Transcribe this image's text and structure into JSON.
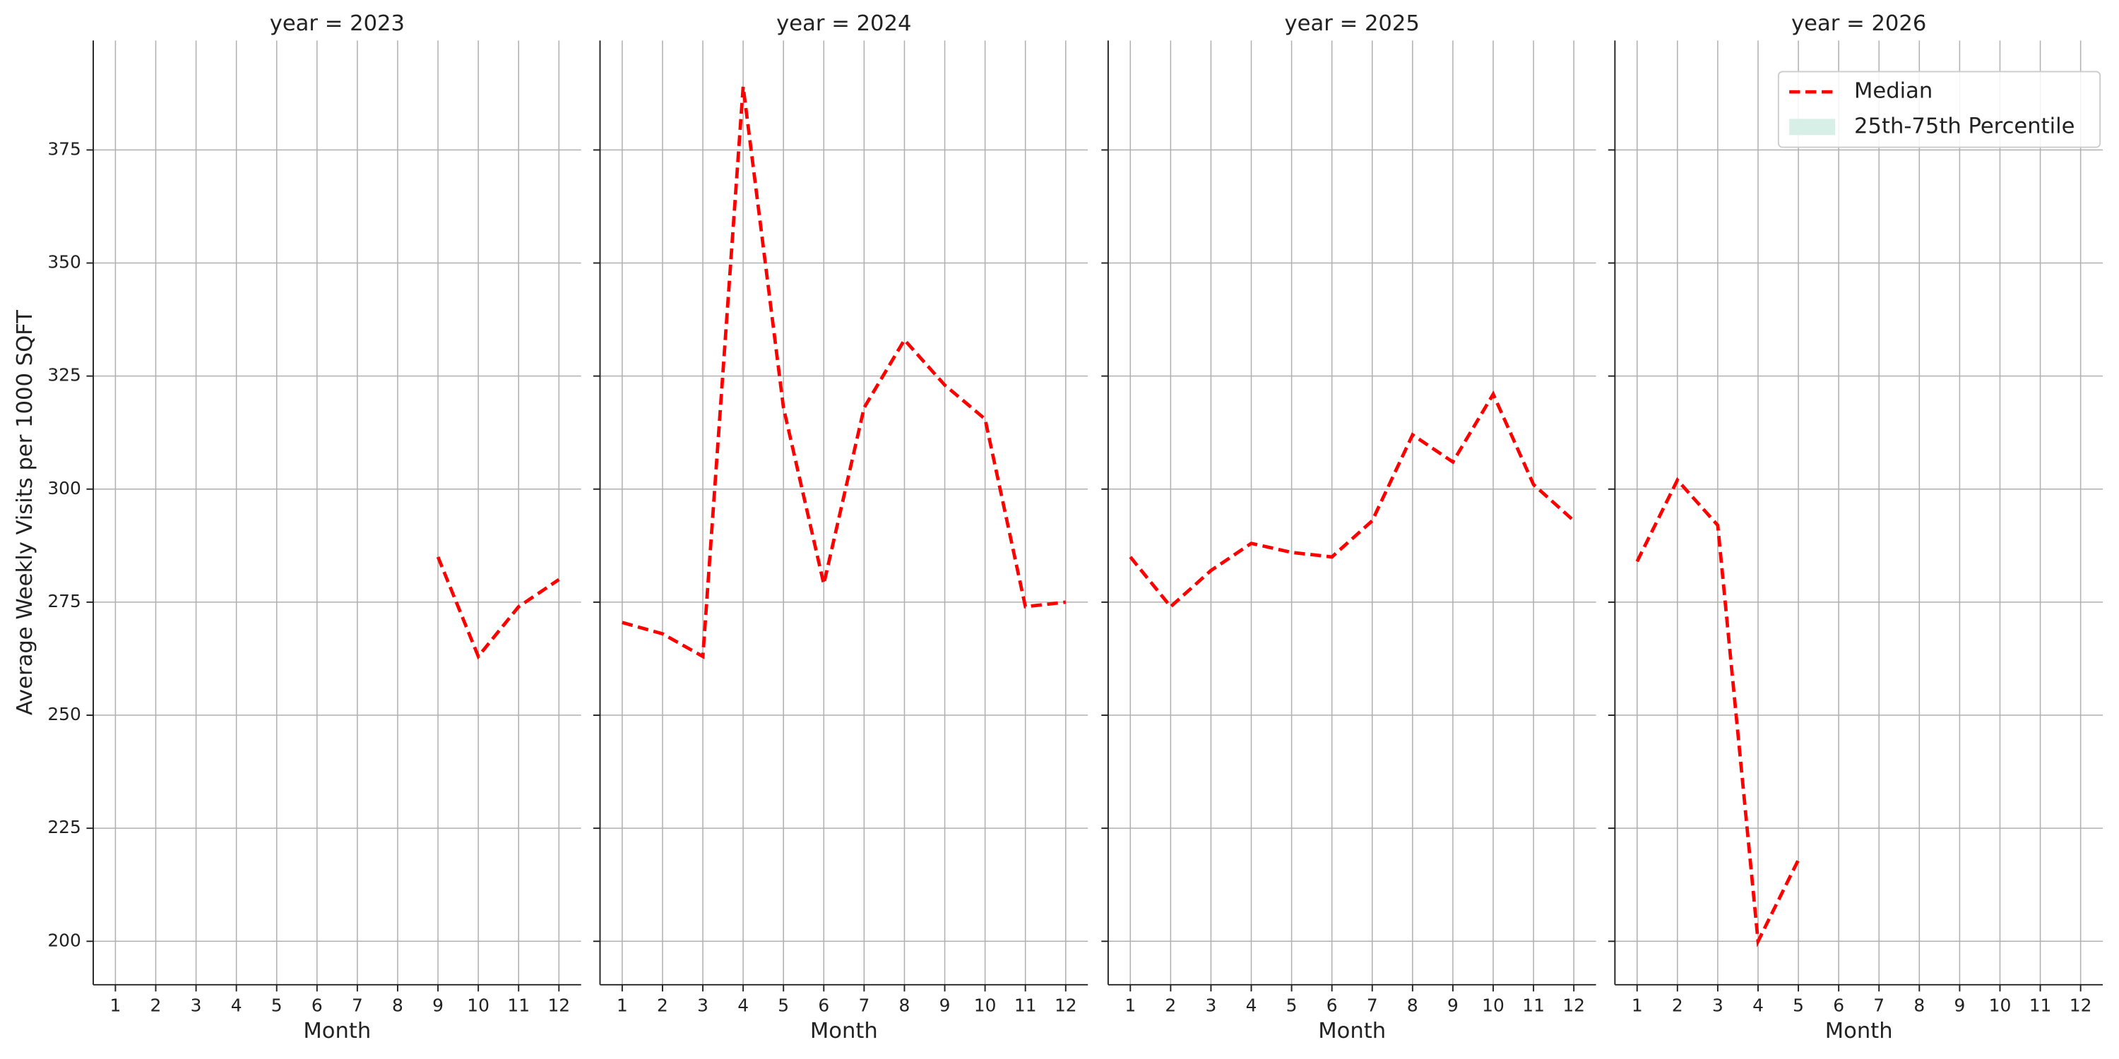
{
  "chart_data": [
    {
      "type": "line",
      "title": "year = 2023",
      "xlabel": "Month",
      "ylabel": "Average Weekly Visits per 1000 SQFT",
      "x": [
        1,
        2,
        3,
        4,
        5,
        6,
        7,
        8,
        9,
        10,
        11,
        12
      ],
      "series": [
        {
          "name": "Median",
          "color": "#ff0000",
          "values": [
            null,
            null,
            null,
            null,
            null,
            null,
            null,
            null,
            285,
            263,
            274,
            280
          ]
        },
        {
          "name": "25th-75th Percentile",
          "color": "#d7efe6",
          "values": [
            null,
            null,
            null,
            null,
            null,
            null,
            null,
            null,
            null,
            null,
            null,
            null
          ]
        }
      ],
      "xlim": [
        0.45,
        12.55
      ],
      "ylim": [
        190.4,
        399.2
      ],
      "yticks": [
        200,
        225,
        250,
        275,
        300,
        325,
        350,
        375
      ],
      "grid": true
    },
    {
      "type": "line",
      "title": "year = 2024",
      "xlabel": "Month",
      "x": [
        1,
        2,
        3,
        4,
        5,
        6,
        7,
        8,
        9,
        10,
        11,
        12
      ],
      "series": [
        {
          "name": "Median",
          "color": "#ff0000",
          "values": [
            270.5,
            268,
            263,
            389,
            318,
            279,
            318,
            333,
            323,
            315.5,
            274,
            275
          ]
        },
        {
          "name": "25th-75th Percentile",
          "color": "#d7efe6",
          "values": [
            null,
            null,
            null,
            null,
            null,
            null,
            null,
            null,
            null,
            null,
            null,
            null
          ]
        }
      ],
      "xlim": [
        0.45,
        12.55
      ],
      "ylim": [
        190.4,
        399.2
      ],
      "yticks": [
        200,
        225,
        250,
        275,
        300,
        325,
        350,
        375
      ],
      "grid": true
    },
    {
      "type": "line",
      "title": "year = 2025",
      "xlabel": "Month",
      "x": [
        1,
        2,
        3,
        4,
        5,
        6,
        7,
        8,
        9,
        10,
        11,
        12
      ],
      "series": [
        {
          "name": "Median",
          "color": "#ff0000",
          "values": [
            285,
            274,
            282,
            288,
            286,
            285,
            293,
            312,
            306,
            321,
            301,
            293
          ]
        },
        {
          "name": "25th-75th Percentile",
          "color": "#d7efe6",
          "values": [
            null,
            null,
            null,
            null,
            null,
            null,
            null,
            null,
            null,
            null,
            null,
            null
          ]
        }
      ],
      "xlim": [
        0.45,
        12.55
      ],
      "ylim": [
        190.4,
        399.2
      ],
      "yticks": [
        200,
        225,
        250,
        275,
        300,
        325,
        350,
        375
      ],
      "grid": true
    },
    {
      "type": "line",
      "title": "year = 2026",
      "xlabel": "Month",
      "x": [
        1,
        2,
        3,
        4,
        5,
        6,
        7,
        8,
        9,
        10,
        11,
        12
      ],
      "series": [
        {
          "name": "Median",
          "color": "#ff0000",
          "values": [
            284,
            302,
            292,
            200,
            218,
            null,
            null,
            null,
            null,
            null,
            null,
            null
          ]
        },
        {
          "name": "25th-75th Percentile",
          "color": "#d7efe6",
          "values": [
            null,
            null,
            null,
            null,
            null,
            null,
            null,
            null,
            null,
            null,
            null,
            null
          ]
        }
      ],
      "xlim": [
        0.45,
        12.55
      ],
      "ylim": [
        190.4,
        399.2
      ],
      "yticks": [
        200,
        225,
        250,
        275,
        300,
        325,
        350,
        375
      ],
      "grid": true,
      "legend": "upper right"
    }
  ]
}
